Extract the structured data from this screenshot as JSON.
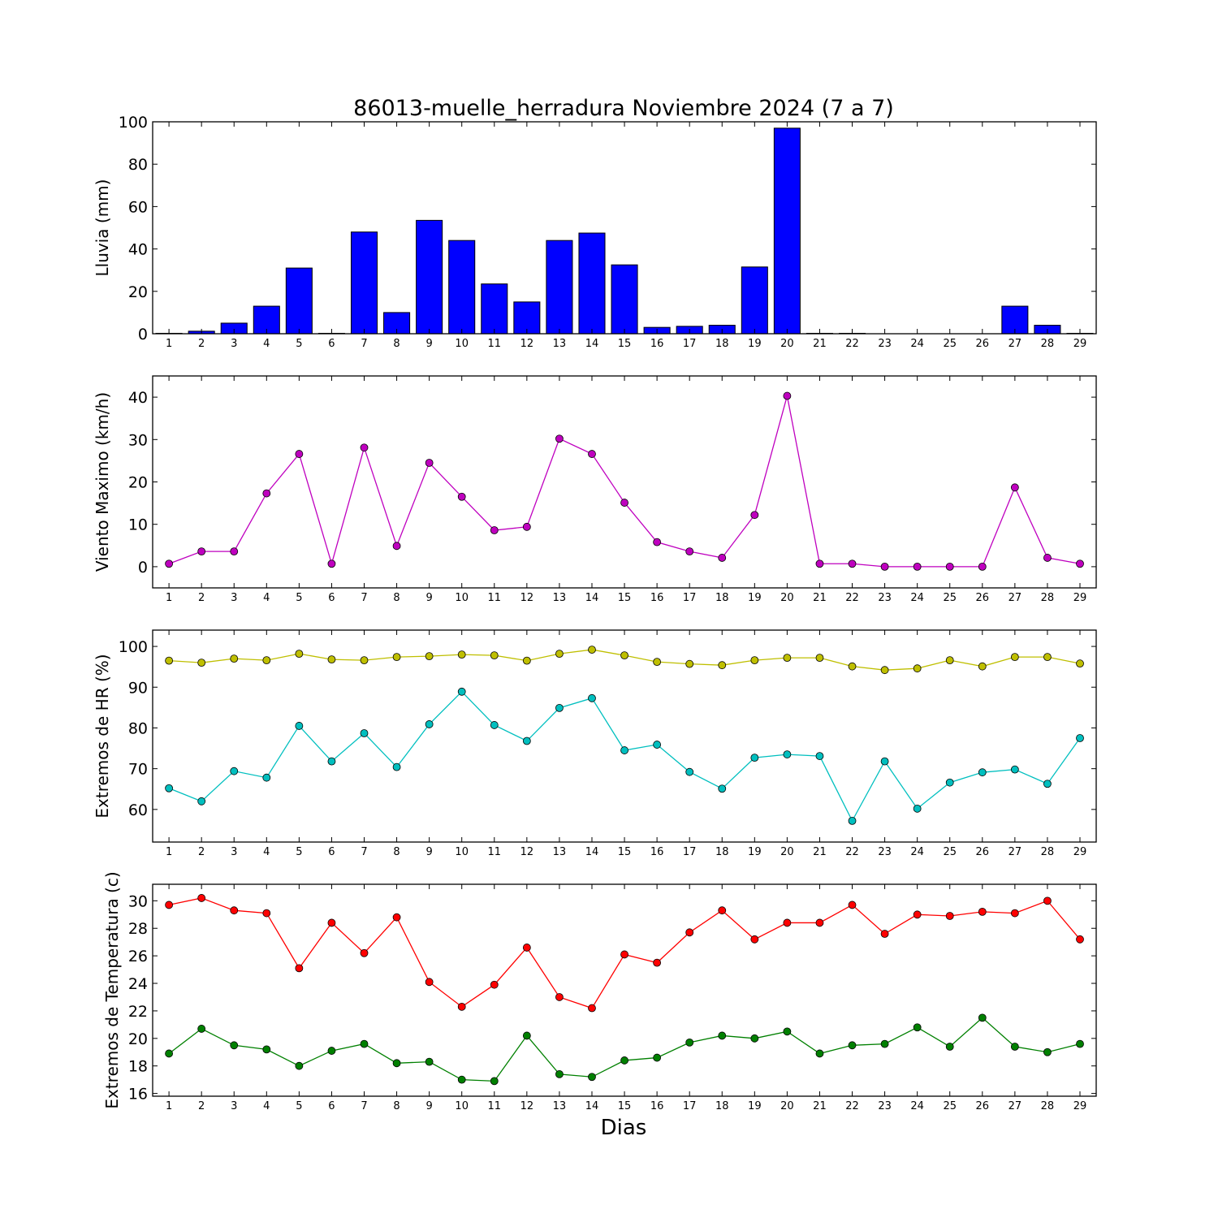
{
  "title": "86013-muelle_herradura Noviembre 2024  (7 a 7)",
  "xlabel": "Dias",
  "chart_data": [
    {
      "type": "bar",
      "ylabel": "Lluvia (mm)",
      "ylim": [
        0,
        100
      ],
      "yticks": [
        0,
        20,
        40,
        60,
        80,
        100
      ],
      "categories": [
        1,
        2,
        3,
        4,
        5,
        6,
        7,
        8,
        9,
        10,
        11,
        12,
        13,
        14,
        15,
        16,
        17,
        18,
        19,
        20,
        21,
        22,
        23,
        24,
        25,
        26,
        27,
        28,
        29
      ],
      "series": [
        {
          "color": "#0000ff",
          "values": [
            0.2,
            1.2,
            5,
            13,
            31,
            0.2,
            48,
            10,
            53.5,
            44,
            23.5,
            15,
            44,
            47.5,
            32.5,
            3,
            3.5,
            4,
            31.5,
            97,
            0.2,
            0.2,
            0,
            0,
            0,
            0,
            13,
            4,
            0.2
          ]
        }
      ]
    },
    {
      "type": "line",
      "ylabel": "Viento Maximo (km/h)",
      "ylim": [
        -5,
        45
      ],
      "yticks": [
        0,
        10,
        20,
        30,
        40
      ],
      "categories": [
        1,
        2,
        3,
        4,
        5,
        6,
        7,
        8,
        9,
        10,
        11,
        12,
        13,
        14,
        15,
        16,
        17,
        18,
        19,
        20,
        21,
        22,
        23,
        24,
        25,
        26,
        27,
        28,
        29
      ],
      "series": [
        {
          "color": "#bf00bf",
          "values": [
            0.7,
            3.6,
            3.6,
            17.3,
            26.6,
            0.7,
            28.1,
            4.9,
            24.5,
            16.5,
            8.6,
            9.4,
            30.2,
            26.6,
            15.1,
            5.8,
            3.6,
            2.1,
            12.2,
            40.3,
            0.7,
            0.7,
            0,
            0,
            0,
            0,
            18.7,
            2.1,
            0.7
          ]
        }
      ]
    },
    {
      "type": "line",
      "ylabel": "Extremos de HR (%)",
      "ylim": [
        52,
        104
      ],
      "yticks": [
        60,
        70,
        80,
        90,
        100
      ],
      "categories": [
        1,
        2,
        3,
        4,
        5,
        6,
        7,
        8,
        9,
        10,
        11,
        12,
        13,
        14,
        15,
        16,
        17,
        18,
        19,
        20,
        21,
        22,
        23,
        24,
        25,
        26,
        27,
        28,
        29
      ],
      "series": [
        {
          "color": "#bfbf00",
          "values": [
            96.5,
            96,
            97,
            96.6,
            98.2,
            96.8,
            96.6,
            97.4,
            97.6,
            98,
            97.8,
            96.5,
            98.2,
            99.2,
            97.8,
            96.2,
            95.7,
            95.4,
            96.6,
            97.2,
            97.2,
            95.1,
            94.2,
            94.6,
            96.6,
            95.1,
            97.4,
            97.4,
            95.8
          ]
        },
        {
          "color": "#00bfbf",
          "values": [
            65.2,
            62,
            69.4,
            67.8,
            80.5,
            71.8,
            78.7,
            70.4,
            80.9,
            88.9,
            80.7,
            76.8,
            84.9,
            87.3,
            74.5,
            75.9,
            69.2,
            65.1,
            72.7,
            73.5,
            73.1,
            57.2,
            71.8,
            60.2,
            66.6,
            69.1,
            69.8,
            66.3,
            77.5
          ]
        }
      ]
    },
    {
      "type": "line",
      "ylabel": "Extremos de Temperatura (c)",
      "ylim": [
        15.8,
        31.2
      ],
      "yticks": [
        16,
        18,
        20,
        22,
        24,
        26,
        28,
        30
      ],
      "categories": [
        1,
        2,
        3,
        4,
        5,
        6,
        7,
        8,
        9,
        10,
        11,
        12,
        13,
        14,
        15,
        16,
        17,
        18,
        19,
        20,
        21,
        22,
        23,
        24,
        25,
        26,
        27,
        28,
        29
      ],
      "series": [
        {
          "color": "#ff0000",
          "values": [
            29.7,
            30.2,
            29.3,
            29.1,
            25.1,
            28.4,
            26.2,
            28.8,
            24.1,
            22.3,
            23.9,
            26.6,
            23,
            22.2,
            26.1,
            25.5,
            27.7,
            29.3,
            27.2,
            28.4,
            28.4,
            29.7,
            27.6,
            29,
            28.9,
            29.2,
            29.1,
            30,
            27.2
          ]
        },
        {
          "color": "#008000",
          "values": [
            18.9,
            20.7,
            19.5,
            19.2,
            18,
            19.1,
            19.6,
            18.2,
            18.3,
            17,
            16.9,
            20.2,
            17.4,
            17.2,
            18.4,
            18.6,
            19.7,
            20.2,
            20,
            20.5,
            18.9,
            19.5,
            19.6,
            20.8,
            19.4,
            21.5,
            19.4,
            19,
            19.6
          ]
        }
      ]
    }
  ]
}
